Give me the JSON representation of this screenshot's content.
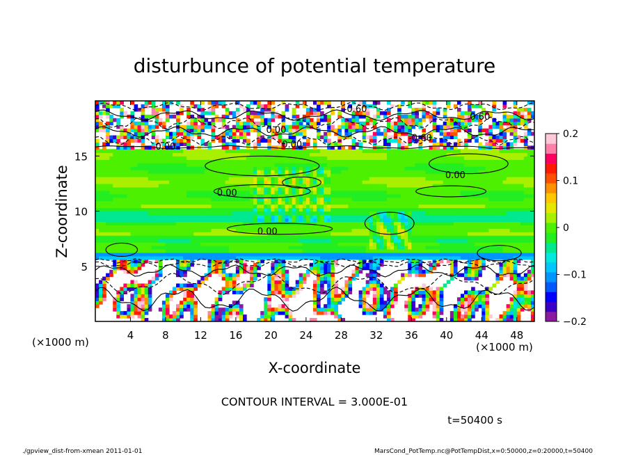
{
  "chart_data": {
    "type": "heatmap",
    "title": "disturbunce of potential temperature",
    "xlabel": "X-coordinate",
    "ylabel": "Z-coordinate",
    "x_unit": "(×1000 m)",
    "y_unit": "(×1000 m)",
    "xlim": [
      0,
      50
    ],
    "ylim": [
      0,
      20
    ],
    "x_ticks": [
      4,
      8,
      12,
      16,
      20,
      24,
      28,
      32,
      36,
      40,
      44,
      48
    ],
    "y_ticks": [
      5,
      10,
      15
    ],
    "colorbar": {
      "range": [
        -0.2,
        0.2
      ],
      "tick_values": [
        0.2,
        0.1,
        0,
        -0.1,
        -0.2
      ],
      "tick_labels": [
        "0.2",
        "0.1",
        "0",
        "−0.1",
        "−0.2"
      ],
      "colors": [
        "#8a1aa0",
        "#3a00c8",
        "#0000ff",
        "#0058ff",
        "#0096ff",
        "#00c8ff",
        "#00e8e0",
        "#00e890",
        "#22ee22",
        "#4cf000",
        "#a8f000",
        "#e6e600",
        "#ffc800",
        "#ff9000",
        "#ff5000",
        "#ff1a00",
        "#ff0060",
        "#ff80a8",
        "#ffc8d8"
      ]
    },
    "contour_labels": [
      {
        "text": "-0.60",
        "x": 29.6,
        "y": 19.3
      },
      {
        "text": "0.60",
        "x": 43.8,
        "y": 18.6
      },
      {
        "text": "0.00",
        "x": 20.6,
        "y": 17.4
      },
      {
        "text": "-0.60",
        "x": 37.0,
        "y": 16.7
      },
      {
        "text": "0.00",
        "x": 8.0,
        "y": 15.9
      },
      {
        "text": "0.00",
        "x": 22.4,
        "y": 16.1
      },
      {
        "text": "0.00",
        "x": 41.0,
        "y": 13.3
      },
      {
        "text": "0.00",
        "x": 15.0,
        "y": 11.7
      },
      {
        "text": "0.00",
        "x": 19.6,
        "y": 8.2
      }
    ],
    "contour_interval": "CONTOUR INTERVAL = 3.000E-01",
    "time": "t=50400 s"
  },
  "footer": {
    "left": "./gpview_dist-from-xmean   2011-01-01",
    "right": "MarsCond_PotTemp.nc@PotTempDist,x=0:50000,z=0:20000,t=50400"
  }
}
